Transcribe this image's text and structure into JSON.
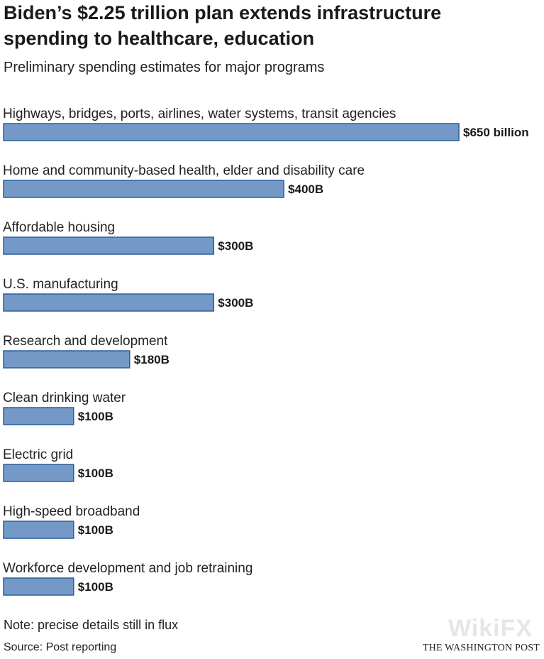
{
  "title": "Biden’s $2.25 trillion plan extends infrastructure spending to healthcare, education",
  "subtitle": "Preliminary spending estimates for major programs",
  "note": "Note: precise details still in flux",
  "source": "Source: Post reporting",
  "credit": "THE WASHINGTON POST",
  "watermark": "WikiFX",
  "colors": {
    "bar_fill": "#7499c6",
    "bar_stroke": "#2a5f9a"
  },
  "chart_data": {
    "type": "bar",
    "orientation": "horizontal",
    "title": "Biden’s $2.25 trillion plan extends infrastructure spending to healthcare, education",
    "subtitle": "Preliminary spending estimates for major programs",
    "unit": "billion USD",
    "xlim": [
      0,
      650
    ],
    "categories": [
      "Highways, bridges, ports, airlines, water systems, transit agencies",
      "Home and community-based health, elder and disability care",
      "Affordable housing",
      "U.S. manufacturing",
      "Research and development",
      "Clean drinking water",
      "Electric grid",
      "High-speed broadband",
      "Workforce development and job retraining"
    ],
    "values": [
      650,
      400,
      300,
      300,
      180,
      100,
      100,
      100,
      100
    ],
    "value_labels": [
      "$650 billion",
      "$400B",
      "$300B",
      "$300B",
      "$180B",
      "$100B",
      "$100B",
      "$100B",
      "$100B"
    ]
  }
}
